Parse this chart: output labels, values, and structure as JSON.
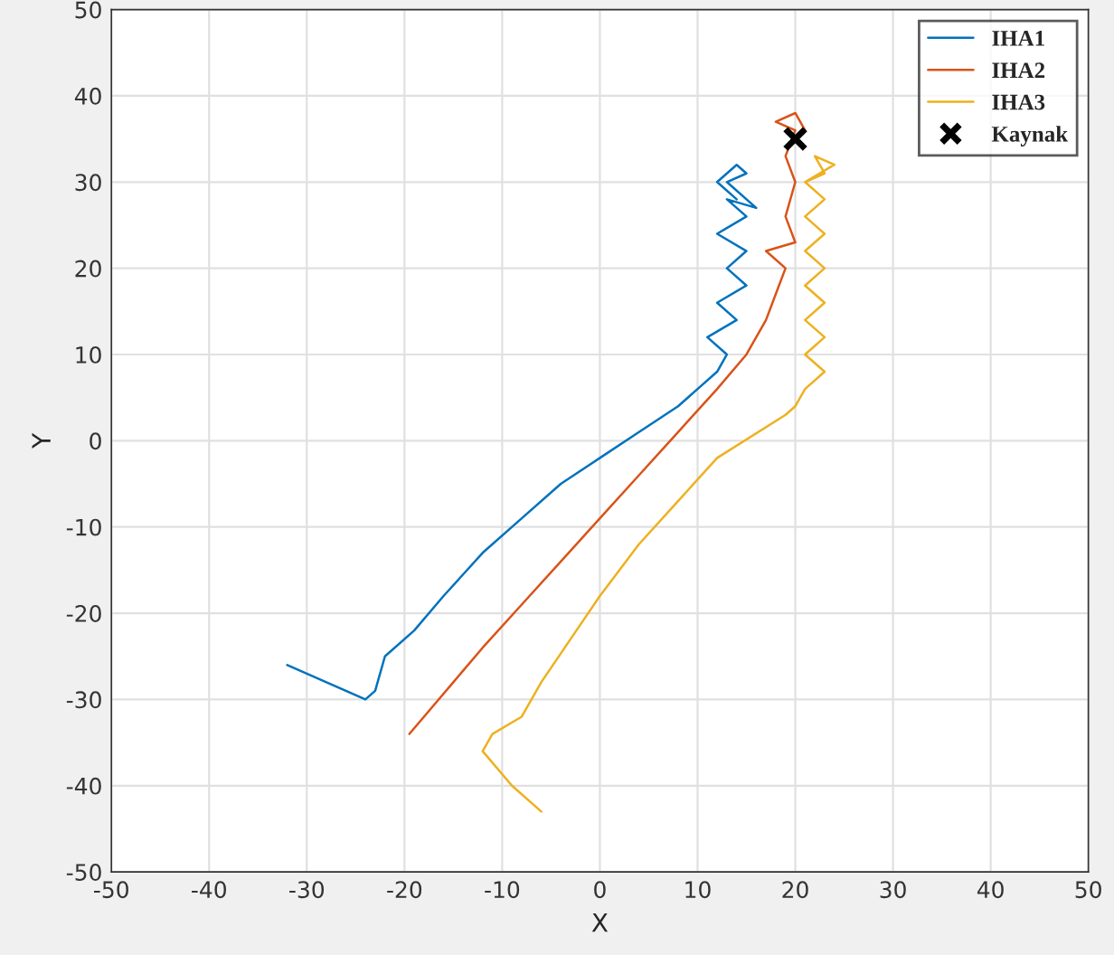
{
  "chart_data": {
    "type": "line",
    "xlabel": "X",
    "ylabel": "Y",
    "xlim": [
      -50,
      50
    ],
    "ylim": [
      -50,
      50
    ],
    "xticks": [
      -50,
      -40,
      -30,
      -20,
      -10,
      0,
      10,
      20,
      30,
      40,
      50
    ],
    "yticks": [
      -50,
      -40,
      -30,
      -20,
      -10,
      0,
      10,
      20,
      30,
      40,
      50
    ],
    "grid": true,
    "legend": "top right",
    "series": [
      {
        "name": "IHA1",
        "color": "#0072bd",
        "x": [
          -32,
          -28,
          -24,
          -23,
          -22,
          -19,
          -16,
          -12,
          -8,
          -4,
          0,
          4,
          8,
          10,
          12,
          13,
          11,
          14,
          12,
          15,
          13,
          15,
          12,
          15,
          13,
          16,
          13,
          15,
          14,
          12,
          14
        ],
        "values": [
          -26,
          -28,
          -30,
          -29,
          -25,
          -22,
          -18,
          -13,
          -9,
          -5,
          -2,
          1,
          4,
          6,
          8,
          10,
          12,
          14,
          16,
          18,
          20,
          22,
          24,
          26,
          28,
          27,
          30,
          31,
          32,
          30,
          28
        ]
      },
      {
        "name": "IHA2",
        "color": "#d95319",
        "x": [
          -19.5,
          -18,
          -15,
          -12,
          -8,
          -4,
          0,
          4,
          8,
          12,
          15,
          17,
          18,
          19,
          17,
          20,
          19,
          20,
          19,
          20,
          18,
          20,
          21,
          20
        ],
        "values": [
          -34,
          -32,
          -28,
          -24,
          -19,
          -14,
          -9,
          -4,
          1,
          6,
          10,
          14,
          17,
          20,
          22,
          23,
          26,
          30,
          33,
          36,
          37,
          38,
          36,
          35
        ]
      },
      {
        "name": "IHA3",
        "color": "#edb120",
        "x": [
          -6,
          -9,
          -12,
          -11,
          -8,
          -6,
          -3,
          0,
          4,
          8,
          12,
          19,
          20,
          21,
          23,
          21,
          23,
          21,
          23,
          21,
          23,
          21,
          23,
          21,
          23,
          21,
          24,
          22,
          23,
          21
        ],
        "values": [
          -43,
          -40,
          -36,
          -34,
          -32,
          -28,
          -23,
          -18,
          -12,
          -7,
          -2,
          3,
          4,
          6,
          8,
          10,
          12,
          14,
          16,
          18,
          20,
          22,
          24,
          26,
          28,
          30,
          32,
          33,
          31,
          30
        ]
      },
      {
        "name": "Kaynak",
        "type": "scatter",
        "marker": "cross",
        "color": "#000000",
        "x": [
          20
        ],
        "values": [
          35
        ]
      }
    ]
  }
}
